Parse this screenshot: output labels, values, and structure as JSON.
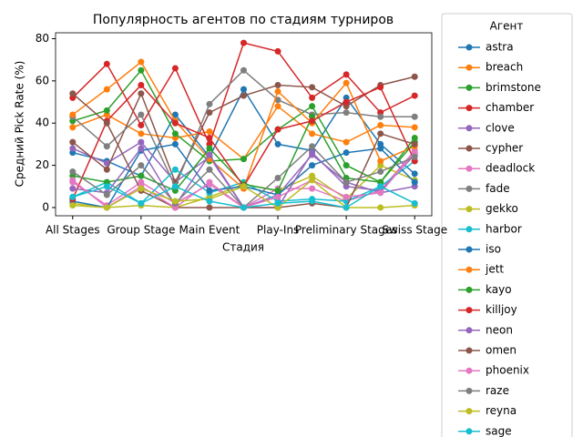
{
  "chart_data": {
    "type": "line",
    "title": "Популярность агентов по стадиям турниров",
    "xlabel": "Стадия",
    "ylabel": "Средний Pick Rate (%)",
    "legend_title": "Агент",
    "categories": [
      "All Stages",
      null,
      "Group Stage",
      null,
      "Main Event",
      null,
      "Play-Ins",
      null,
      "Preliminary Stages",
      null,
      "Swiss Stage"
    ],
    "ylim": [
      -3.9,
      82.8
    ],
    "yticks": [
      0,
      20,
      40,
      60,
      80
    ],
    "series": [
      {
        "name": "astra",
        "color": "#1f77b4",
        "values": [
          26,
          22,
          15,
          44,
          24,
          56,
          30,
          27,
          52,
          30,
          16
        ]
      },
      {
        "name": "breach",
        "color": "#ff7f0e",
        "values": [
          38,
          44,
          35,
          33,
          36,
          23,
          48,
          35,
          31,
          39,
          38
        ]
      },
      {
        "name": "brimstone",
        "color": "#2ca02c",
        "values": [
          41,
          46,
          65,
          35,
          22,
          23,
          37,
          48,
          20,
          12,
          33
        ]
      },
      {
        "name": "chamber",
        "color": "#d62728",
        "values": [
          52,
          68,
          39,
          66,
          30,
          78,
          74,
          52,
          63,
          45,
          53
        ]
      },
      {
        "name": "clove",
        "color": "#9467bd",
        "values": [
          28,
          21,
          31,
          12,
          24,
          0,
          6,
          25,
          12,
          7,
          10
        ]
      },
      {
        "name": "cypher",
        "color": "#8c564b",
        "values": [
          31,
          18,
          54,
          12,
          45,
          53,
          58,
          57,
          48,
          58,
          62
        ]
      },
      {
        "name": "deadlock",
        "color": "#e377c2",
        "values": [
          12,
          1,
          12,
          2,
          11,
          0,
          9,
          9,
          3,
          8,
          27
        ]
      },
      {
        "name": "fade",
        "color": "#7f7f7f",
        "values": [
          43,
          29,
          44,
          10,
          49,
          65,
          51,
          44,
          45,
          43,
          43
        ]
      },
      {
        "name": "gekko",
        "color": "#bcbd22",
        "values": [
          2,
          0,
          1,
          0,
          5,
          11,
          8,
          15,
          4,
          20,
          13
        ]
      },
      {
        "name": "harbor",
        "color": "#17becf",
        "values": [
          5,
          12,
          2,
          18,
          7,
          12,
          3,
          4,
          3,
          10,
          22
        ]
      },
      {
        "name": "iso",
        "color": "#1f77b4",
        "values": [
          3,
          0,
          27,
          30,
          8,
          10,
          6,
          20,
          26,
          28,
          12
        ]
      },
      {
        "name": "jett",
        "color": "#ff7f0e",
        "values": [
          44,
          56,
          69,
          41,
          23,
          9,
          55,
          40,
          59,
          22,
          29
        ]
      },
      {
        "name": "kayo",
        "color": "#2ca02c",
        "values": [
          15,
          12,
          15,
          8,
          28,
          11,
          8,
          43,
          14,
          12,
          31
        ]
      },
      {
        "name": "killjoy",
        "color": "#d62728",
        "values": [
          4,
          41,
          58,
          40,
          33,
          10,
          37,
          41,
          50,
          57,
          22
        ]
      },
      {
        "name": "neon",
        "color": "#9467bd",
        "values": [
          9,
          7,
          28,
          1,
          25,
          0,
          0,
          26,
          10,
          8,
          25
        ]
      },
      {
        "name": "omen",
        "color": "#8c564b",
        "values": [
          54,
          40,
          8,
          0,
          0,
          0,
          0,
          2,
          0,
          35,
          30
        ]
      },
      {
        "name": "phoenix",
        "color": "#e377c2",
        "values": [
          13,
          0,
          10,
          0,
          12,
          0,
          5,
          13,
          5,
          7,
          26
        ]
      },
      {
        "name": "raze",
        "color": "#7f7f7f",
        "values": [
          17,
          6,
          20,
          2,
          18,
          0,
          14,
          29,
          12,
          17,
          24
        ]
      },
      {
        "name": "reyna",
        "color": "#bcbd22",
        "values": [
          1,
          0,
          9,
          3,
          4,
          10,
          0,
          13,
          0,
          0,
          1
        ]
      },
      {
        "name": "sage",
        "color": "#17becf",
        "values": [
          5,
          10,
          2,
          10,
          3,
          0,
          2,
          3,
          0,
          10,
          2
        ]
      }
    ]
  }
}
